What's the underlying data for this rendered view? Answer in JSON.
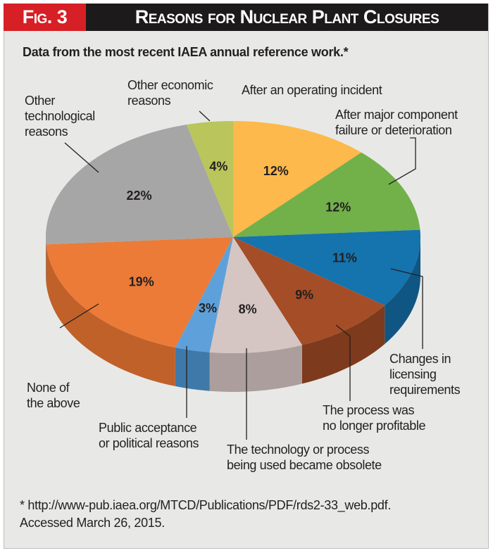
{
  "header": {
    "fig_label": "Fig. 3",
    "title": "Reasons for Nuclear Plant Closures"
  },
  "subtitle": "Data from the most recent IAEA annual reference work.*",
  "footnote": "* http://www-pub.iaea.org/MTCD/Publications/PDF/rds2-33_web.pdf.\n  Accessed March 26, 2015.",
  "chart_data": {
    "type": "pie",
    "title": "Reasons for Nuclear Plant Closures",
    "start": "12 o'clock, clockwise",
    "slices": [
      {
        "label": "After an operating incident",
        "value": 12,
        "display": "12%",
        "color": "#fdb94b",
        "side": "#d69a36"
      },
      {
        "label": "After major component\nfailure or deterioration",
        "value": 12,
        "display": "12%",
        "color": "#72b04a",
        "side": "#5a8f38"
      },
      {
        "label": "Changes in\nlicensing\nrequirements",
        "value": 11,
        "display": "11%",
        "color": "#1573ad",
        "side": "#0f5683"
      },
      {
        "label": "The process was\nno longer profitable",
        "value": 9,
        "display": "9%",
        "color": "#a54d26",
        "side": "#7e3a1c"
      },
      {
        "label": "The technology or process\nbeing used became obsolete",
        "value": 8,
        "display": "8%",
        "color": "#d5c6c3",
        "side": "#ab9e9c"
      },
      {
        "label": "Public acceptance\nor political reasons",
        "value": 3,
        "display": "3%",
        "color": "#5ea1da",
        "side": "#3f79a9"
      },
      {
        "label": "None of\nthe above",
        "value": 19,
        "display": "19%",
        "color": "#eb7b37",
        "side": "#c0612a"
      },
      {
        "label": "Other\ntechnological\nreasons",
        "value": 22,
        "display": "22%",
        "color": "#a6a6a6",
        "side": "#858585"
      },
      {
        "label": "Other economic\nreasons",
        "value": 4,
        "display": "4%",
        "color": "#bac55b",
        "side": "#949e45"
      }
    ]
  }
}
